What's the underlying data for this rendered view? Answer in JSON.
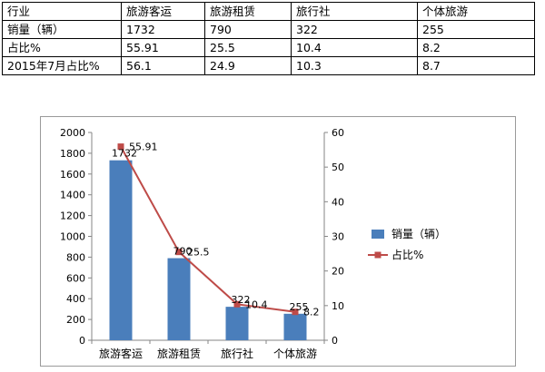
{
  "table": {
    "headers": [
      "行业",
      "旅游客运",
      "旅游租赁",
      "旅行社",
      "个体旅游"
    ],
    "rows": [
      [
        "销量（辆）",
        "1732",
        "790",
        "322",
        "255"
      ],
      [
        "占比%",
        "55.91",
        "25.5",
        "10.4",
        "8.2"
      ],
      [
        "2015年7月占比%",
        "56.1",
        "24.9",
        "10.3",
        "8.7"
      ]
    ]
  },
  "chart_data": {
    "type": "bar",
    "categories": [
      "旅游客运",
      "旅游租赁",
      "旅行社",
      "个体旅游"
    ],
    "series": [
      {
        "name": "销量（辆）",
        "type": "bar",
        "axis": "left",
        "values": [
          1732,
          790,
          322,
          255
        ],
        "color": "#4a7ebb"
      },
      {
        "name": "占比%",
        "type": "line",
        "axis": "right",
        "values": [
          55.91,
          25.5,
          10.4,
          8.2
        ],
        "color": "#be4b48"
      }
    ],
    "y_left": {
      "min": 0,
      "max": 2000,
      "step": 200
    },
    "y_right": {
      "min": 0,
      "max": 60,
      "step": 10
    },
    "bar_labels": [
      "1732",
      "790",
      "322",
      "255"
    ],
    "line_labels": [
      "55.91",
      "25.5",
      "10.4",
      "8.2"
    ],
    "legend": "right",
    "grid": false
  }
}
